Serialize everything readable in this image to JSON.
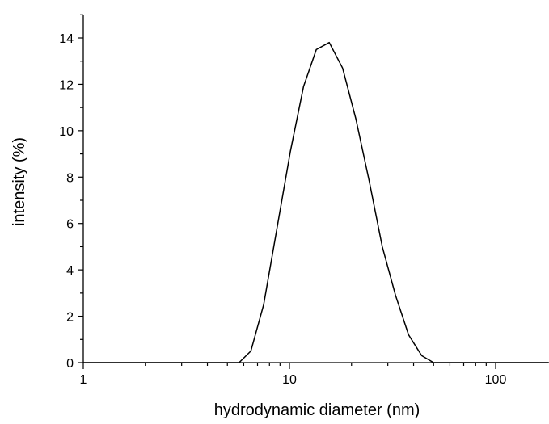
{
  "chart_data": {
    "type": "line",
    "title": "",
    "xlabel": "hydrodynamic diameter (nm)",
    "ylabel": "intensity (%)",
    "xscale": "log",
    "xlim": [
      1,
      180
    ],
    "ylim": [
      0,
      15
    ],
    "xticks": [
      1,
      10,
      100
    ],
    "xtick_labels": [
      "1",
      "10",
      "100"
    ],
    "yticks": [
      0,
      2,
      4,
      6,
      8,
      10,
      12,
      14
    ],
    "ytick_labels": [
      "0",
      "2",
      "4",
      "6",
      "8",
      "10",
      "12",
      "14"
    ],
    "grid": false,
    "legend": "none",
    "series": [
      {
        "color": "#000000",
        "x": [
          1,
          5.7,
          6.5,
          7.5,
          8.7,
          10.1,
          11.7,
          13.5,
          15.6,
          18.1,
          21.0,
          24.4,
          28.2,
          32.7,
          37.8,
          43.8,
          50.0,
          180
        ],
        "y": [
          0,
          0,
          0.5,
          2.5,
          5.8,
          9.1,
          11.9,
          13.5,
          13.8,
          12.7,
          10.5,
          7.8,
          5.0,
          2.9,
          1.2,
          0.3,
          0,
          0
        ]
      }
    ]
  }
}
